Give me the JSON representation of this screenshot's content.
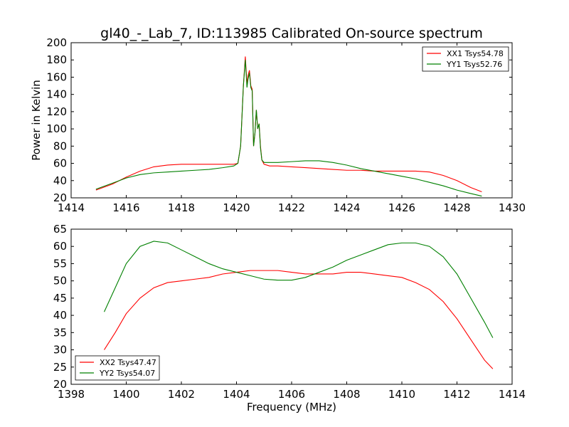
{
  "title": "gl40_-_Lab_7, ID:113985 Calibrated On-source spectrum",
  "colors": {
    "red": "#ff0000",
    "green": "#008000"
  },
  "chart_data": [
    {
      "type": "line",
      "title": "gl40_-_Lab_7, ID:113985 Calibrated On-source spectrum",
      "xlabel": "",
      "ylabel": "Power in Kelvin",
      "xlim": [
        1414,
        1430
      ],
      "ylim": [
        20,
        200
      ],
      "xticks": [
        1414,
        1416,
        1418,
        1420,
        1422,
        1424,
        1426,
        1428,
        1430
      ],
      "yticks": [
        20,
        40,
        60,
        80,
        100,
        120,
        140,
        160,
        180,
        200
      ],
      "legend": "top-right",
      "grid": false,
      "series": [
        {
          "name": "XX1 Tsys54.78",
          "color": "#ff0000",
          "x": [
            1414.9,
            1415.5,
            1416,
            1416.5,
            1417,
            1417.5,
            1418,
            1418.5,
            1419,
            1419.5,
            1419.9,
            1420.05,
            1420.15,
            1420.25,
            1420.32,
            1420.38,
            1420.42,
            1420.47,
            1420.52,
            1420.57,
            1420.62,
            1420.67,
            1420.72,
            1420.77,
            1420.82,
            1420.87,
            1420.92,
            1421.0,
            1421.2,
            1421.5,
            1422,
            1422.5,
            1423,
            1423.5,
            1424,
            1424.5,
            1425,
            1425.5,
            1426,
            1426.5,
            1427,
            1427.5,
            1428,
            1428.5,
            1428.9
          ],
          "y": [
            29,
            36,
            44,
            51,
            56,
            58,
            59,
            59,
            59,
            59,
            59,
            60,
            80,
            150,
            184,
            152,
            162,
            168,
            150,
            146,
            80,
            95,
            122,
            100,
            106,
            80,
            64,
            59,
            57,
            57,
            56,
            55,
            54,
            53,
            52,
            52,
            51,
            51,
            51,
            51,
            50,
            46,
            40,
            32,
            27
          ]
        },
        {
          "name": "YY1 Tsys52.76",
          "color": "#008000",
          "x": [
            1414.9,
            1415.5,
            1416,
            1416.5,
            1417,
            1417.5,
            1418,
            1418.5,
            1419,
            1419.5,
            1419.9,
            1420.05,
            1420.15,
            1420.25,
            1420.32,
            1420.38,
            1420.42,
            1420.47,
            1420.52,
            1420.57,
            1420.62,
            1420.67,
            1420.72,
            1420.77,
            1420.82,
            1420.87,
            1420.92,
            1421.0,
            1421.2,
            1421.5,
            1422,
            1422.5,
            1423,
            1423.5,
            1424,
            1424.5,
            1425,
            1425.5,
            1426,
            1426.5,
            1427,
            1427.5,
            1428,
            1428.5,
            1428.9
          ],
          "y": [
            30,
            37,
            43,
            47,
            49,
            50,
            51,
            52,
            53,
            55,
            57,
            60,
            80,
            150,
            180,
            148,
            158,
            165,
            148,
            144,
            80,
            95,
            122,
            100,
            106,
            78,
            64,
            61,
            61,
            61,
            62,
            63,
            63,
            61,
            58,
            54,
            51,
            48,
            45,
            42,
            38,
            34,
            29,
            25,
            22
          ]
        }
      ]
    },
    {
      "type": "line",
      "title": "",
      "xlabel": "Frequency (MHz)",
      "ylabel": "",
      "xlim": [
        1398,
        1414
      ],
      "ylim": [
        20,
        65
      ],
      "xticks": [
        1398,
        1400,
        1402,
        1404,
        1406,
        1408,
        1410,
        1412,
        1414
      ],
      "yticks": [
        20,
        25,
        30,
        35,
        40,
        45,
        50,
        55,
        60,
        65
      ],
      "legend": "bottom-left",
      "grid": false,
      "series": [
        {
          "name": "XX2 Tsys47.47",
          "color": "#ff0000",
          "x": [
            1399.2,
            1399.6,
            1400,
            1400.5,
            1401,
            1401.5,
            1402,
            1402.5,
            1403,
            1403.5,
            1404,
            1404.5,
            1405,
            1405.5,
            1406,
            1406.5,
            1407,
            1407.5,
            1408,
            1408.5,
            1409,
            1409.5,
            1410,
            1410.5,
            1411,
            1411.5,
            1412,
            1412.5,
            1413,
            1413.3
          ],
          "y": [
            30,
            35,
            40.5,
            45,
            48,
            49.5,
            50,
            50.5,
            51,
            52,
            52.5,
            53,
            53,
            53,
            52.5,
            52,
            52,
            52,
            52.5,
            52.5,
            52,
            51.5,
            51,
            49.5,
            47.5,
            44,
            39,
            33,
            27,
            24.5
          ]
        },
        {
          "name": "YY2 Tsys54.07",
          "color": "#008000",
          "x": [
            1399.2,
            1399.6,
            1400,
            1400.5,
            1401,
            1401.5,
            1402,
            1402.5,
            1403,
            1403.5,
            1404,
            1404.5,
            1405,
            1405.5,
            1406,
            1406.5,
            1407,
            1407.5,
            1408,
            1408.5,
            1409,
            1409.5,
            1410,
            1410.5,
            1411,
            1411.5,
            1412,
            1412.5,
            1413,
            1413.3
          ],
          "y": [
            41,
            48,
            55,
            60,
            61.5,
            61,
            59,
            57,
            55,
            53.5,
            52.5,
            51.5,
            50.5,
            50.2,
            50.2,
            51,
            52.5,
            54,
            56,
            57.5,
            59,
            60.5,
            61,
            61,
            60,
            57,
            52,
            45,
            38,
            33.5
          ]
        }
      ]
    }
  ]
}
